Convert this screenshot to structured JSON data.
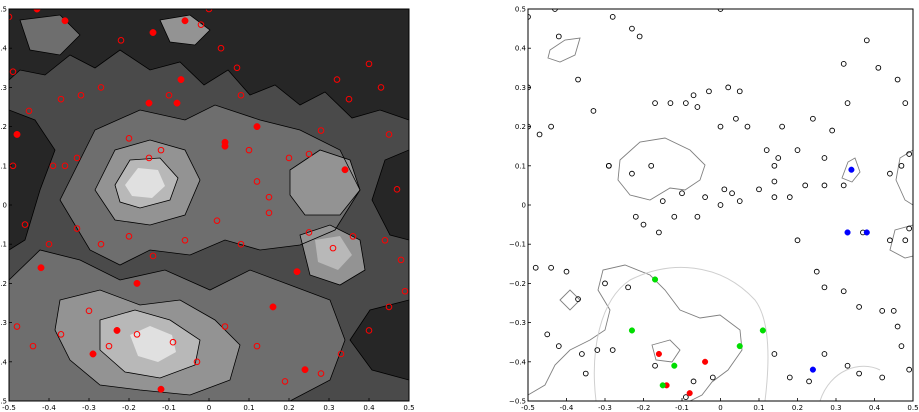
{
  "chart_data": [
    {
      "type": "contour",
      "xlim": [
        -0.5,
        0.5
      ],
      "ylim": [
        -0.5,
        0.5
      ],
      "xticks": [
        "-0.5",
        "-0.4",
        "-0.3",
        "-0.2",
        "-0.1",
        "0",
        "0.1",
        "0.2",
        "0.3",
        "0.4",
        "0.5"
      ],
      "yticks": [
        "0.5",
        "0.4",
        "0.3",
        "0.2",
        "0.1",
        "0",
        "−0.1",
        "−0.2",
        "−0.3",
        "−0.4",
        "−0.5"
      ],
      "colors": {
        "dark": "#262626",
        "mid1": "#4a4a4a",
        "mid2": "#6e6e6e",
        "mid3": "#939393",
        "light": "#b8b8b8",
        "lightest": "#e0e0e0",
        "marker": "#ff0000"
      },
      "filled_points": [
        [
          -0.48,
          0.18
        ],
        [
          -0.43,
          0.5
        ],
        [
          -0.36,
          0.47
        ],
        [
          -0.14,
          0.44
        ],
        [
          -0.06,
          0.47
        ],
        [
          -0.07,
          0.32
        ],
        [
          -0.15,
          0.26
        ],
        [
          -0.08,
          0.26
        ],
        [
          0.04,
          0.16
        ],
        [
          0.04,
          0.15
        ],
        [
          0.12,
          0.2
        ],
        [
          0.34,
          0.09
        ],
        [
          -0.42,
          -0.16
        ],
        [
          -0.18,
          -0.2
        ],
        [
          0.22,
          -0.17
        ],
        [
          0.16,
          -0.26
        ],
        [
          -0.29,
          -0.38
        ],
        [
          -0.23,
          -0.32
        ],
        [
          0.24,
          -0.42
        ],
        [
          -0.12,
          -0.47
        ]
      ],
      "open_points": [
        [
          -0.5,
          0.48
        ],
        [
          -0.49,
          0.34
        ],
        [
          -0.49,
          0.1
        ],
        [
          -0.45,
          0.24
        ],
        [
          -0.39,
          0.1
        ],
        [
          -0.37,
          0.27
        ],
        [
          -0.36,
          0.1
        ],
        [
          -0.33,
          0.12
        ],
        [
          -0.32,
          0.28
        ],
        [
          -0.27,
          0.3
        ],
        [
          -0.22,
          0.42
        ],
        [
          -0.2,
          0.17
        ],
        [
          -0.15,
          0.12
        ],
        [
          -0.12,
          0.14
        ],
        [
          -0.1,
          0.28
        ],
        [
          -0.02,
          0.46
        ],
        [
          0.0,
          0.5
        ],
        [
          0.03,
          0.4
        ],
        [
          0.07,
          0.35
        ],
        [
          0.08,
          0.28
        ],
        [
          0.1,
          0.14
        ],
        [
          0.12,
          0.06
        ],
        [
          0.15,
          0.02
        ],
        [
          0.2,
          0.12
        ],
        [
          0.25,
          0.13
        ],
        [
          0.28,
          0.19
        ],
        [
          0.32,
          0.32
        ],
        [
          0.35,
          0.27
        ],
        [
          0.4,
          0.36
        ],
        [
          0.43,
          0.3
        ],
        [
          0.45,
          0.18
        ],
        [
          0.47,
          0.04
        ],
        [
          -0.46,
          -0.05
        ],
        [
          -0.4,
          -0.1
        ],
        [
          -0.33,
          -0.06
        ],
        [
          -0.27,
          -0.1
        ],
        [
          -0.2,
          -0.08
        ],
        [
          -0.14,
          -0.13
        ],
        [
          -0.06,
          -0.09
        ],
        [
          0.02,
          -0.04
        ],
        [
          0.08,
          -0.1
        ],
        [
          0.15,
          -0.02
        ],
        [
          0.25,
          -0.07
        ],
        [
          0.31,
          -0.11
        ],
        [
          0.36,
          -0.08
        ],
        [
          0.44,
          -0.09
        ],
        [
          0.48,
          -0.14
        ],
        [
          -0.48,
          -0.31
        ],
        [
          -0.44,
          -0.36
        ],
        [
          -0.37,
          -0.33
        ],
        [
          -0.3,
          -0.27
        ],
        [
          -0.25,
          -0.36
        ],
        [
          -0.18,
          -0.33
        ],
        [
          -0.09,
          -0.35
        ],
        [
          -0.03,
          -0.4
        ],
        [
          0.04,
          -0.31
        ],
        [
          0.12,
          -0.36
        ],
        [
          0.19,
          -0.45
        ],
        [
          0.28,
          -0.43
        ],
        [
          0.33,
          -0.38
        ],
        [
          0.4,
          -0.32
        ],
        [
          0.45,
          -0.26
        ],
        [
          0.49,
          -0.22
        ]
      ]
    },
    {
      "type": "scatter",
      "xlim": [
        -0.5,
        0.5
      ],
      "ylim": [
        -0.5,
        0.5
      ],
      "xticks": [
        "-0.5",
        "-0.4",
        "-0.3",
        "-0.2",
        "-0.1",
        "0",
        "0.1",
        "0.2",
        "0.3",
        "0.4",
        "0.5"
      ],
      "yticks": [
        "0.5",
        "0.4",
        "0.3",
        "0.2",
        "0.1",
        "0",
        "−0.1",
        "−0.2",
        "−0.3",
        "−0.4",
        "−0.5"
      ],
      "colors": {
        "open": "#000000",
        "red": "#ff0000",
        "green": "#00dd00",
        "blue": "#0000ff",
        "contour": "#808080",
        "lightcurve": "#cfcfcf"
      },
      "open_points": [
        [
          -0.5,
          0.48
        ],
        [
          -0.43,
          0.5
        ],
        [
          -0.42,
          0.43
        ],
        [
          -0.28,
          0.48
        ],
        [
          -0.23,
          0.45
        ],
        [
          -0.21,
          0.43
        ],
        [
          0.0,
          0.5
        ],
        [
          -0.5,
          0.3
        ],
        [
          -0.5,
          0.2
        ],
        [
          -0.47,
          0.18
        ],
        [
          -0.44,
          0.2
        ],
        [
          -0.37,
          0.32
        ],
        [
          -0.33,
          0.24
        ],
        [
          -0.17,
          0.26
        ],
        [
          -0.13,
          0.26
        ],
        [
          -0.09,
          0.26
        ],
        [
          -0.07,
          0.28
        ],
        [
          -0.06,
          0.25
        ],
        [
          -0.03,
          0.29
        ],
        [
          0.0,
          0.2
        ],
        [
          0.02,
          0.3
        ],
        [
          0.05,
          0.29
        ],
        [
          0.04,
          0.22
        ],
        [
          0.07,
          0.2
        ],
        [
          0.12,
          0.14
        ],
        [
          0.14,
          0.1
        ],
        [
          0.14,
          0.06
        ],
        [
          0.15,
          0.12
        ],
        [
          0.16,
          0.2
        ],
        [
          0.2,
          0.14
        ],
        [
          0.24,
          0.22
        ],
        [
          0.27,
          0.12
        ],
        [
          0.29,
          0.19
        ],
        [
          0.32,
          0.36
        ],
        [
          0.33,
          0.26
        ],
        [
          0.38,
          0.42
        ],
        [
          0.41,
          0.35
        ],
        [
          0.46,
          0.32
        ],
        [
          0.48,
          0.26
        ],
        [
          0.49,
          0.13
        ],
        [
          0.47,
          0.1
        ],
        [
          0.44,
          0.08
        ],
        [
          -0.29,
          0.1
        ],
        [
          -0.29,
          0.1
        ],
        [
          -0.23,
          0.08
        ],
        [
          -0.18,
          0.1
        ],
        [
          -0.15,
          0.01
        ],
        [
          -0.12,
          -0.03
        ],
        [
          -0.1,
          0.03
        ],
        [
          -0.06,
          -0.03
        ],
        [
          -0.04,
          0.02
        ],
        [
          0.0,
          0.0
        ],
        [
          0.01,
          0.04
        ],
        [
          0.03,
          0.03
        ],
        [
          0.05,
          0.01
        ],
        [
          0.1,
          0.04
        ],
        [
          0.14,
          0.02
        ],
        [
          0.18,
          0.02
        ],
        [
          0.22,
          0.05
        ],
        [
          0.27,
          0.05
        ],
        [
          0.32,
          0.05
        ],
        [
          -0.22,
          -0.03
        ],
        [
          -0.2,
          -0.05
        ],
        [
          -0.16,
          -0.07
        ],
        [
          0.2,
          -0.09
        ],
        [
          0.37,
          -0.07
        ],
        [
          0.44,
          -0.09
        ],
        [
          0.48,
          -0.09
        ],
        [
          0.49,
          -0.06
        ],
        [
          -0.48,
          -0.16
        ],
        [
          -0.44,
          -0.16
        ],
        [
          -0.4,
          -0.17
        ],
        [
          -0.37,
          -0.24
        ],
        [
          -0.3,
          -0.2
        ],
        [
          -0.24,
          -0.21
        ],
        [
          0.25,
          -0.17
        ],
        [
          0.27,
          -0.21
        ],
        [
          0.32,
          -0.22
        ],
        [
          0.36,
          -0.26
        ],
        [
          0.42,
          -0.27
        ],
        [
          0.45,
          -0.27
        ],
        [
          0.46,
          -0.31
        ],
        [
          0.47,
          -0.36
        ],
        [
          0.49,
          -0.42
        ],
        [
          -0.45,
          -0.33
        ],
        [
          -0.42,
          -0.36
        ],
        [
          -0.36,
          -0.38
        ],
        [
          -0.32,
          -0.37
        ],
        [
          -0.28,
          -0.37
        ],
        [
          -0.17,
          -0.41
        ],
        [
          -0.07,
          -0.45
        ],
        [
          -0.02,
          -0.44
        ],
        [
          0.14,
          -0.38
        ],
        [
          0.18,
          -0.44
        ],
        [
          0.23,
          -0.45
        ],
        [
          0.27,
          -0.38
        ],
        [
          0.33,
          -0.41
        ],
        [
          0.36,
          -0.43
        ],
        [
          0.42,
          -0.44
        ],
        [
          -0.35,
          -0.43
        ],
        [
          -0.09,
          -0.49
        ]
      ],
      "red_points": [
        [
          -0.16,
          -0.38
        ],
        [
          -0.04,
          -0.4
        ],
        [
          -0.14,
          -0.46
        ],
        [
          -0.08,
          -0.48
        ]
      ],
      "green_points": [
        [
          -0.17,
          -0.19
        ],
        [
          -0.23,
          -0.32
        ],
        [
          -0.12,
          -0.41
        ],
        [
          -0.15,
          -0.46
        ],
        [
          0.05,
          -0.36
        ],
        [
          0.11,
          -0.32
        ]
      ],
      "blue_points": [
        [
          0.34,
          0.09
        ],
        [
          0.33,
          -0.07
        ],
        [
          0.38,
          -0.07
        ],
        [
          0.24,
          -0.42
        ]
      ]
    }
  ]
}
